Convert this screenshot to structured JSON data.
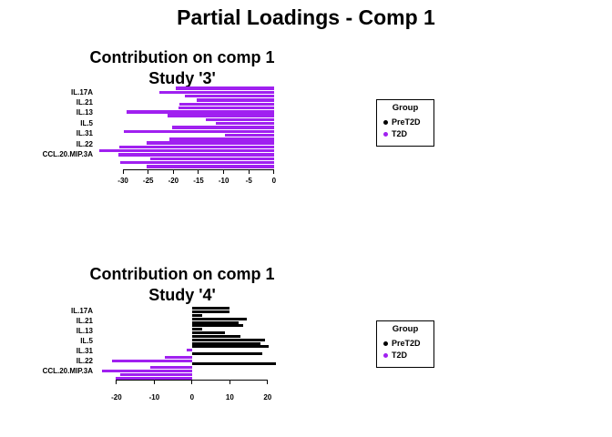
{
  "main_title": "Partial Loadings - Comp 1",
  "colors": {
    "PreT2D": "#000000",
    "T2D": "#A020F0"
  },
  "legend": {
    "title": "Group",
    "items": [
      {
        "label": "PreT2D",
        "color": "#000000"
      },
      {
        "label": "T2D",
        "color": "#A020F0"
      }
    ]
  },
  "chart_data": [
    {
      "type": "bar",
      "orientation": "horizontal",
      "title": "Contribution on comp 1",
      "subtitle": "Study '3'",
      "ylabel_features": [
        "IL.17A",
        "IL.21",
        "IL.13",
        "IL.5",
        "IL.31",
        "IL.22",
        "CCL.20.MIP.3A"
      ],
      "label_bar_offset": 1,
      "label_bar_step": 3,
      "xticks": [
        -30,
        -25,
        -20,
        -15,
        -10,
        -5,
        0
      ],
      "xlim": [
        -34.9,
        1.65
      ],
      "legend_position": "right",
      "grid": false,
      "bars": [
        {
          "value": -19.5,
          "group": "T2D"
        },
        {
          "value": -22.8,
          "group": "T2D"
        },
        {
          "value": -17.7,
          "group": "T2D"
        },
        {
          "value": -15.3,
          "group": "T2D"
        },
        {
          "value": -18.8,
          "group": "T2D"
        },
        {
          "value": -19.0,
          "group": "T2D"
        },
        {
          "value": -29.3,
          "group": "T2D"
        },
        {
          "value": -21.2,
          "group": "T2D"
        },
        {
          "value": -13.5,
          "group": "T2D"
        },
        {
          "value": -11.5,
          "group": "T2D"
        },
        {
          "value": -20.3,
          "group": "T2D"
        },
        {
          "value": -29.8,
          "group": "T2D"
        },
        {
          "value": -9.8,
          "group": "T2D"
        },
        {
          "value": -20.8,
          "group": "T2D"
        },
        {
          "value": -25.3,
          "group": "T2D"
        },
        {
          "value": -30.8,
          "group": "T2D"
        },
        {
          "value": -34.8,
          "group": "T2D"
        },
        {
          "value": -31.0,
          "group": "T2D"
        },
        {
          "value": -24.5,
          "group": "T2D"
        },
        {
          "value": -30.5,
          "group": "T2D"
        },
        {
          "value": -25.4,
          "group": "T2D"
        }
      ]
    },
    {
      "type": "bar",
      "orientation": "horizontal",
      "title": "Contribution on comp 1",
      "subtitle": "Study '4'",
      "ylabel_features": [
        "IL.17A",
        "IL.21",
        "IL.13",
        "IL.5",
        "IL.31",
        "IL.22",
        "CCL.20.MIP.3A"
      ],
      "label_bar_offset": 1,
      "label_bar_step": 3,
      "xticks": [
        -20,
        -10,
        0,
        10,
        20
      ],
      "xlim": [
        -24.8,
        23.9
      ],
      "legend_position": "right",
      "grid": false,
      "bars": [
        {
          "value": 9.8,
          "group": "PreT2D"
        },
        {
          "value": 9.9,
          "group": "PreT2D"
        },
        {
          "value": 2.6,
          "group": "PreT2D"
        },
        {
          "value": 14.6,
          "group": "PreT2D"
        },
        {
          "value": 12.3,
          "group": "PreT2D"
        },
        {
          "value": 13.5,
          "group": "PreT2D"
        },
        {
          "value": 2.6,
          "group": "PreT2D"
        },
        {
          "value": 8.8,
          "group": "PreT2D"
        },
        {
          "value": 12.7,
          "group": "PreT2D"
        },
        {
          "value": 19.3,
          "group": "PreT2D"
        },
        {
          "value": 18.2,
          "group": "PreT2D"
        },
        {
          "value": 20.2,
          "group": "PreT2D"
        },
        {
          "value": -1.5,
          "group": "T2D"
        },
        {
          "value": 18.6,
          "group": "PreT2D"
        },
        {
          "value": -7.2,
          "group": "T2D"
        },
        {
          "value": -21.1,
          "group": "T2D"
        },
        {
          "value": 22.2,
          "group": "PreT2D"
        },
        {
          "value": -11.1,
          "group": "T2D"
        },
        {
          "value": -23.9,
          "group": "T2D"
        },
        {
          "value": -19.0,
          "group": "T2D"
        },
        {
          "value": -20.3,
          "group": "T2D"
        }
      ]
    }
  ]
}
